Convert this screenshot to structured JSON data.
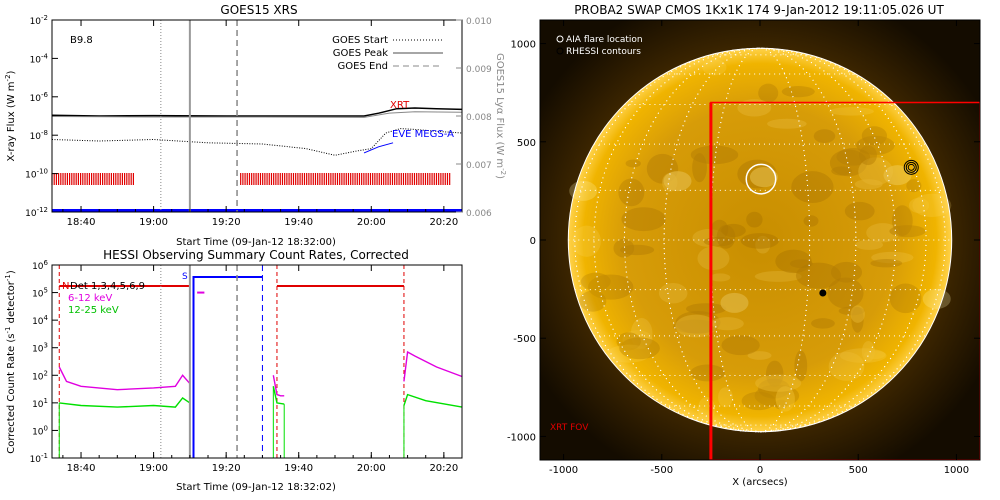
{
  "colors": {
    "goes_long": "#000000",
    "goes_short": "#000000",
    "lyman": "#888888",
    "xrt": "#e00000",
    "eve": "#0000ff",
    "lowest": "#0000ff",
    "hessi_6_12": "#e000e0",
    "hessi_12_25": "#00e000",
    "night": "#e00000",
    "saa": "#0000ff",
    "sun_core": "#f0b000",
    "sun_edge": "#b46e00",
    "sun_bg": "#140c00",
    "xrt_fov": "#ff0000"
  },
  "chart_data": [
    {
      "type": "line",
      "title": "GOES15 XRS",
      "xlabel": "Start Time (09-Jan-12 18:32:00)",
      "ylabel": "X-ray Flux (W m",
      "ylabel_sup": "-2",
      "ylabel_end": ")",
      "y2label": "GOES15 Lyα Flux (W m",
      "y2label_sup": "-2",
      "y2label_end": ")",
      "y_scale": "log",
      "xlim": [
        "18:32",
        "20:25"
      ],
      "ylim": [
        1e-12,
        0.01
      ],
      "y2lim": [
        0.006,
        0.01
      ],
      "x_ticks": [
        "18:40",
        "19:00",
        "19:20",
        "19:40",
        "20:00",
        "20:20"
      ],
      "y_ticks": [
        {
          "base": "10",
          "exp": "-12",
          "value": 1e-12
        },
        {
          "base": "10",
          "exp": "-10",
          "value": 1e-10
        },
        {
          "base": "10",
          "exp": "-8",
          "value": 1e-08
        },
        {
          "base": "10",
          "exp": "-6",
          "value": 1e-06
        },
        {
          "base": "10",
          "exp": "-4",
          "value": 0.0001
        },
        {
          "base": "10",
          "exp": "-2",
          "value": 0.01
        }
      ],
      "y2_ticks": [
        "0.006",
        "0.007",
        "0.008",
        "0.009",
        "0.010"
      ],
      "class_label": "B9.8",
      "legend": {
        "position": "top-right",
        "entries": [
          {
            "label": "GOES Start",
            "style": "dotted"
          },
          {
            "label": "GOES Peak",
            "style": "solid"
          },
          {
            "label": "GOES End",
            "style": "dashed"
          }
        ]
      },
      "event_lines": {
        "start": "19:02",
        "peak": "19:10",
        "end": "19:23"
      },
      "annotations": {
        "xrt": "XRT",
        "eve": "EVE MEGS-A"
      },
      "series": [
        {
          "key": "long",
          "x": [
            "18:32",
            "18:45",
            "19:00",
            "19:20",
            "19:45",
            "19:58",
            "20:02",
            "20:07",
            "20:12",
            "20:18",
            "20:25"
          ],
          "y": [
            1.1e-07,
            1e-07,
            1.05e-07,
            1e-07,
            1e-07,
            1e-07,
            1.4e-07,
            2.4e-07,
            2.6e-07,
            2.4e-07,
            2.2e-07
          ]
        },
        {
          "key": "short",
          "x": [
            "18:32",
            "18:45",
            "19:00",
            "19:15",
            "19:30",
            "19:42",
            "19:50",
            "19:56",
            "20:00",
            "20:04",
            "20:08",
            "20:12",
            "20:18",
            "20:25"
          ],
          "y": [
            6e-09,
            5e-09,
            6e-09,
            4e-09,
            3.5e-09,
            2e-09,
            9e-10,
            1.5e-09,
            2e-09,
            1.3e-08,
            2.2e-08,
            2e-08,
            1.6e-08,
            1.3e-08
          ]
        },
        {
          "key": "lyman",
          "x": [
            "18:32",
            "19:00",
            "19:30",
            "19:58",
            "20:05",
            "20:12",
            "20:25"
          ],
          "y2": [
            0.00799,
            0.00798,
            0.00798,
            0.00797,
            0.00806,
            0.00809,
            0.00808
          ]
        },
        {
          "key": "eve",
          "x": [
            "19:58",
            "20:02",
            "20:06"
          ],
          "y": [
            1.2e-09,
            2.5e-09,
            4e-09
          ]
        }
      ],
      "xrt_coverage": [
        [
          "18:32",
          "18:55"
        ],
        [
          "19:24",
          "20:22"
        ]
      ],
      "lowest_level": 1.2e-12
    },
    {
      "type": "line",
      "title": "HESSI Observing Summary Count Rates, Corrected",
      "xlabel": "Start Time (09-Jan-12 18:32:02)",
      "ylabel": "Corrected Count Rate (s",
      "ylabel_sup": "-1",
      "ylabel_mid": " detector",
      "ylabel_sup2": "-1",
      "ylabel_end": ")",
      "y_scale": "log",
      "xlim": [
        "18:32",
        "20:25"
      ],
      "ylim": [
        0.1,
        1000000.0
      ],
      "x_ticks": [
        "18:40",
        "19:00",
        "19:20",
        "19:40",
        "20:00",
        "20:20"
      ],
      "y_ticks": [
        {
          "base": "10",
          "exp": "-1",
          "value": 0.1
        },
        {
          "base": "10",
          "exp": "0",
          "value": 1
        },
        {
          "base": "10",
          "exp": "1",
          "value": 10
        },
        {
          "base": "10",
          "exp": "2",
          "value": 100
        },
        {
          "base": "10",
          "exp": "3",
          "value": 1000
        },
        {
          "base": "10",
          "exp": "4",
          "value": 10000
        },
        {
          "base": "10",
          "exp": "5",
          "value": 100000
        },
        {
          "base": "10",
          "exp": "6",
          "value": 1000000
        }
      ],
      "state_labels": {
        "night": "N",
        "saa": "S"
      },
      "detectors": "Det 1,3,4,5,6,9",
      "legend": {
        "position": "top-left"
      },
      "event_lines": {
        "start": "19:02",
        "peak": "19:10",
        "end": "19:23"
      },
      "night_periods": [
        [
          "18:34",
          "19:10"
        ],
        [
          "19:34",
          "20:09"
        ]
      ],
      "saa_period": [
        "19:11",
        "19:30"
      ],
      "series": [
        {
          "name": "6-12 keV",
          "key": "low",
          "segments": [
            {
              "x": [
                "18:34",
                "18:36",
                "18:40",
                "18:50",
                "19:00",
                "19:06",
                "19:08",
                "19:10"
              ],
              "y": [
                200,
                60,
                40,
                30,
                35,
                40,
                100,
                50
              ]
            },
            {
              "x": [
                "19:33",
                "19:34",
                "19:35",
                "19:36"
              ],
              "y": [
                100,
                20,
                18,
                18
              ]
            },
            {
              "x": [
                "20:09",
                "20:10",
                "20:12",
                "20:18",
                "20:25"
              ],
              "y": [
                60,
                700,
                500,
                200,
                90
              ]
            }
          ]
        },
        {
          "name": "12-25 keV",
          "key": "high",
          "segments": [
            {
              "x": [
                "18:34",
                "18:40",
                "18:50",
                "19:00",
                "19:06",
                "19:08",
                "19:10"
              ],
              "y": [
                10,
                8,
                7,
                8,
                7,
                15,
                10
              ]
            },
            {
              "x": [
                "19:33",
                "19:34",
                "19:36"
              ],
              "y": [
                40,
                10,
                9
              ]
            },
            {
              "x": [
                "20:09",
                "20:10",
                "20:15",
                "20:25"
              ],
              "y": [
                8,
                20,
                12,
                7
              ]
            }
          ]
        }
      ]
    },
    {
      "type": "scatter",
      "title": "PROBA2 SWAP CMOS 1Kx1K 174  9-Jan-2012 19:11:05.026 UT",
      "xlabel": "X (arcsecs)",
      "ylabel": "",
      "xlim": [
        -1120,
        1120
      ],
      "ylim": [
        -1120,
        1120
      ],
      "x_ticks": [
        "-1000",
        "-500",
        "0",
        "500",
        "1000"
      ],
      "y_ticks": [
        "1000",
        "500",
        "0",
        "-500",
        "-1000"
      ],
      "legend": {
        "position": "top-left",
        "entries": [
          "AIA flare location",
          "RHESSI contours"
        ]
      },
      "limb_radius": 976,
      "aia_flare": {
        "x": 5,
        "y": 310,
        "r": 75
      },
      "rhessi_sources": [
        {
          "x": 770,
          "y": 370
        },
        {
          "x": 320,
          "y": -270
        }
      ],
      "xrt_fov": {
        "x": [
          -250,
          1120
        ],
        "y": [
          -1120,
          700
        ],
        "label": "XRT FOV"
      }
    }
  ]
}
